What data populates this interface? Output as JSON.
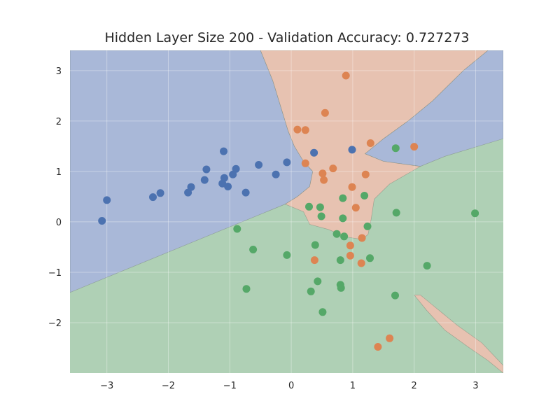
{
  "chart_data": {
    "type": "scatter",
    "title": "Hidden Layer Size 200 - Validation Accuracy: 0.727273",
    "xlabel": "",
    "ylabel": "",
    "xlim": [
      -3.6,
      3.45
    ],
    "ylim": [
      -3.0,
      3.4
    ],
    "xticks": [
      -3,
      -2,
      -1,
      0,
      1,
      2,
      3
    ],
    "yticks": [
      -2,
      -1,
      0,
      1,
      2,
      3
    ],
    "xtick_labels": [
      "−3",
      "−2",
      "−1",
      "0",
      "1",
      "2",
      "3"
    ],
    "ytick_labels": [
      "−2",
      "−1",
      "0",
      "1",
      "2",
      "3"
    ],
    "grid": true,
    "background": "#eaeaf2",
    "colors": {
      "blue_points": "#4c72b0",
      "orange_points": "#dd8452",
      "green_points": "#55a868",
      "blue_region": "#a9b8d8",
      "orange_region": "#e7c2b1",
      "green_region": "#afd0b5"
    },
    "decision_regions": [
      {
        "class": "blue",
        "polygons": [
          [
            [
              -3.6,
              3.4
            ],
            [
              -0.5,
              3.4
            ],
            [
              -0.3,
              2.8
            ],
            [
              -0.15,
              2.2
            ],
            [
              -0.05,
              1.8
            ],
            [
              0.05,
              1.5
            ],
            [
              0.2,
              1.2
            ],
            [
              0.35,
              1.0
            ],
            [
              0.3,
              0.7
            ],
            [
              0.1,
              0.5
            ],
            [
              -0.1,
              0.35
            ],
            [
              -3.6,
              -1.4
            ]
          ],
          [
            [
              1.2,
              1.35
            ],
            [
              1.5,
              1.65
            ],
            [
              1.9,
              2.0
            ],
            [
              2.3,
              2.4
            ],
            [
              2.8,
              3.0
            ],
            [
              3.2,
              3.4
            ],
            [
              3.45,
              3.4
            ],
            [
              3.45,
              1.65
            ],
            [
              2.5,
              1.3
            ],
            [
              2.1,
              1.1
            ],
            [
              1.5,
              1.2
            ]
          ]
        ]
      },
      {
        "class": "orange",
        "polygons": [
          [
            [
              -0.5,
              3.4
            ],
            [
              3.2,
              3.4
            ],
            [
              2.8,
              3.0
            ],
            [
              2.3,
              2.4
            ],
            [
              1.9,
              2.0
            ],
            [
              1.5,
              1.65
            ],
            [
              1.2,
              1.35
            ],
            [
              1.5,
              1.2
            ],
            [
              2.1,
              1.1
            ],
            [
              1.6,
              0.75
            ],
            [
              1.35,
              0.45
            ],
            [
              1.3,
              0.05
            ],
            [
              1.25,
              -0.25
            ],
            [
              1.15,
              -0.35
            ],
            [
              0.9,
              -0.3
            ],
            [
              0.6,
              -0.15
            ],
            [
              0.3,
              -0.05
            ],
            [
              0.2,
              0.2
            ],
            [
              -0.1,
              0.35
            ],
            [
              0.1,
              0.5
            ],
            [
              0.3,
              0.7
            ],
            [
              0.35,
              1.0
            ],
            [
              0.2,
              1.2
            ],
            [
              0.05,
              1.5
            ],
            [
              -0.05,
              1.8
            ],
            [
              -0.15,
              2.2
            ],
            [
              -0.3,
              2.8
            ]
          ],
          [
            [
              2.0,
              -1.45
            ],
            [
              2.2,
              -1.75
            ],
            [
              2.5,
              -2.15
            ],
            [
              2.9,
              -2.5
            ],
            [
              3.2,
              -2.75
            ],
            [
              3.45,
              -3.0
            ],
            [
              3.45,
              -2.85
            ],
            [
              3.1,
              -2.4
            ],
            [
              2.7,
              -2.05
            ],
            [
              2.3,
              -1.65
            ],
            [
              2.1,
              -1.45
            ]
          ]
        ]
      },
      {
        "class": "green",
        "polygons": [
          [
            [
              -3.6,
              -1.4
            ],
            [
              -0.1,
              0.35
            ],
            [
              0.2,
              0.2
            ],
            [
              0.3,
              -0.05
            ],
            [
              0.6,
              -0.15
            ],
            [
              0.9,
              -0.3
            ],
            [
              1.15,
              -0.35
            ],
            [
              1.25,
              -0.25
            ],
            [
              1.3,
              0.05
            ],
            [
              1.35,
              0.45
            ],
            [
              1.6,
              0.75
            ],
            [
              2.1,
              1.1
            ],
            [
              2.5,
              1.3
            ],
            [
              3.45,
              1.65
            ],
            [
              3.45,
              -2.85
            ],
            [
              3.1,
              -2.4
            ],
            [
              2.7,
              -2.05
            ],
            [
              2.3,
              -1.65
            ],
            [
              2.1,
              -1.45
            ],
            [
              2.0,
              -1.45
            ],
            [
              2.2,
              -1.75
            ],
            [
              2.5,
              -2.15
            ],
            [
              2.9,
              -2.5
            ],
            [
              3.2,
              -2.75
            ],
            [
              3.45,
              -3.0
            ],
            [
              -3.6,
              -3.0
            ]
          ]
        ]
      }
    ],
    "series": [
      {
        "class": "blue",
        "points": [
          [
            -3.0,
            0.43
          ],
          [
            -3.08,
            0.02
          ],
          [
            -2.25,
            0.49
          ],
          [
            -2.13,
            0.57
          ],
          [
            -1.68,
            0.58
          ],
          [
            -1.63,
            0.69
          ],
          [
            -1.41,
            0.83
          ],
          [
            -1.38,
            1.04
          ],
          [
            -1.12,
            0.76
          ],
          [
            -1.09,
            0.87
          ],
          [
            -1.1,
            1.4
          ],
          [
            -1.03,
            0.7
          ],
          [
            -0.95,
            0.94
          ],
          [
            -0.9,
            1.05
          ],
          [
            -0.74,
            0.58
          ],
          [
            -0.53,
            1.13
          ],
          [
            -0.25,
            0.94
          ],
          [
            -0.07,
            1.18
          ],
          [
            0.37,
            1.37
          ],
          [
            0.99,
            1.43
          ]
        ]
      },
      {
        "class": "orange",
        "points": [
          [
            0.89,
            2.9
          ],
          [
            0.55,
            2.16
          ],
          [
            0.1,
            1.83
          ],
          [
            0.23,
            1.82
          ],
          [
            1.29,
            1.56
          ],
          [
            2.0,
            1.49
          ],
          [
            0.23,
            1.16
          ],
          [
            0.68,
            1.06
          ],
          [
            0.51,
            0.96
          ],
          [
            0.53,
            0.83
          ],
          [
            1.21,
            0.94
          ],
          [
            0.99,
            0.69
          ],
          [
            1.05,
            0.28
          ],
          [
            1.15,
            -0.32
          ],
          [
            0.96,
            -0.47
          ],
          [
            0.96,
            -0.67
          ],
          [
            0.38,
            -0.76
          ],
          [
            1.14,
            -0.82
          ],
          [
            1.41,
            -2.48
          ],
          [
            1.6,
            -2.31
          ]
        ]
      },
      {
        "class": "green",
        "points": [
          [
            1.7,
            1.46
          ],
          [
            0.84,
            0.47
          ],
          [
            1.19,
            0.52
          ],
          [
            0.29,
            0.3
          ],
          [
            0.47,
            0.29
          ],
          [
            1.71,
            0.18
          ],
          [
            2.99,
            0.17
          ],
          [
            0.49,
            0.11
          ],
          [
            0.84,
            0.07
          ],
          [
            1.24,
            -0.09
          ],
          [
            -0.88,
            -0.14
          ],
          [
            0.74,
            -0.24
          ],
          [
            0.86,
            -0.29
          ],
          [
            0.39,
            -0.46
          ],
          [
            -0.62,
            -0.55
          ],
          [
            -0.07,
            -0.66
          ],
          [
            0.8,
            -0.76
          ],
          [
            1.28,
            -0.72
          ],
          [
            2.21,
            -0.87
          ],
          [
            0.43,
            -1.18
          ],
          [
            0.8,
            -1.25
          ],
          [
            0.81,
            -1.31
          ],
          [
            -0.73,
            -1.33
          ],
          [
            0.32,
            -1.38
          ],
          [
            1.69,
            -1.46
          ],
          [
            0.51,
            -1.79
          ]
        ]
      }
    ]
  }
}
